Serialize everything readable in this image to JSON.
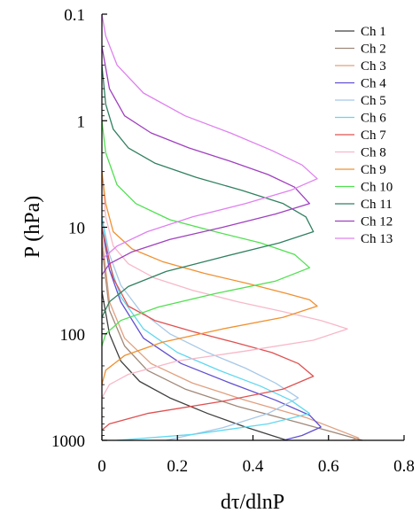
{
  "chart_data": {
    "type": "line",
    "xlabel": "dτ/dlnP",
    "ylabel": "P (hPa)",
    "xlim": [
      0,
      0.8
    ],
    "ylim": [
      0.1,
      1000
    ],
    "y_scale": "log",
    "y_inverted": true,
    "x_ticks": [
      "0",
      "0.2",
      "0.4",
      "0.6",
      "0.8"
    ],
    "y_ticks": [
      "0.1",
      "1",
      "10",
      "100",
      "1000"
    ],
    "legend_position": "top-right",
    "grid": false,
    "series": [
      {
        "name": "Ch 1",
        "color": "#404040",
        "peak_x": 0.49,
        "peak_p": 1000,
        "points": [
          [
            0,
            40
          ],
          [
            0.02,
            100
          ],
          [
            0.05,
            180
          ],
          [
            0.1,
            280
          ],
          [
            0.18,
            400
          ],
          [
            0.28,
            560
          ],
          [
            0.38,
            750
          ],
          [
            0.49,
            1000
          ]
        ]
      },
      {
        "name": "Ch 2",
        "color": "#a08878",
        "peak_x": 0.69,
        "peak_p": 1000,
        "points": [
          [
            0,
            15
          ],
          [
            0.02,
            60
          ],
          [
            0.06,
            130
          ],
          [
            0.12,
            220
          ],
          [
            0.22,
            330
          ],
          [
            0.36,
            480
          ],
          [
            0.52,
            680
          ],
          [
            0.69,
            1000
          ]
        ]
      },
      {
        "name": "Ch 3",
        "color": "#e0a080",
        "peak_x": 0.68,
        "peak_p": 950,
        "points": [
          [
            0,
            12
          ],
          [
            0.02,
            50
          ],
          [
            0.06,
            110
          ],
          [
            0.13,
            190
          ],
          [
            0.24,
            290
          ],
          [
            0.38,
            420
          ],
          [
            0.54,
            610
          ],
          [
            0.68,
            950
          ],
          [
            0.66,
            1000
          ]
        ]
      },
      {
        "name": "Ch 4",
        "color": "#6050d0",
        "peak_x": 0.58,
        "peak_p": 750,
        "points": [
          [
            0,
            10
          ],
          [
            0.02,
            25
          ],
          [
            0.05,
            50
          ],
          [
            0.11,
            110
          ],
          [
            0.21,
            190
          ],
          [
            0.34,
            290
          ],
          [
            0.46,
            420
          ],
          [
            0.55,
            580
          ],
          [
            0.58,
            750
          ],
          [
            0.53,
            900
          ],
          [
            0.48,
            1000
          ]
        ]
      },
      {
        "name": "Ch 5",
        "color": "#a8c8e8",
        "peak_x": 0.52,
        "peak_p": 400,
        "points": [
          [
            0,
            8
          ],
          [
            0.02,
            18
          ],
          [
            0.05,
            35
          ],
          [
            0.1,
            60
          ],
          [
            0.18,
            100
          ],
          [
            0.28,
            150
          ],
          [
            0.38,
            210
          ],
          [
            0.46,
            290
          ],
          [
            0.52,
            400
          ],
          [
            0.44,
            560
          ],
          [
            0.32,
            760
          ],
          [
            0.17,
            1000
          ]
        ]
      },
      {
        "name": "Ch 6",
        "color": "#60d8f0",
        "peak_x": 0.55,
        "peak_p": 560,
        "points": [
          [
            0,
            8
          ],
          [
            0.02,
            22
          ],
          [
            0.05,
            45
          ],
          [
            0.11,
            90
          ],
          [
            0.2,
            150
          ],
          [
            0.31,
            220
          ],
          [
            0.42,
            310
          ],
          [
            0.5,
            420
          ],
          [
            0.55,
            560
          ],
          [
            0.44,
            700
          ],
          [
            0.24,
            880
          ],
          [
            0.04,
            1000
          ]
        ]
      },
      {
        "name": "Ch 7",
        "color": "#e05050",
        "peak_x": 0.56,
        "peak_p": 250,
        "points": [
          [
            0,
            10
          ],
          [
            0.03,
            30
          ],
          [
            0.07,
            55
          ],
          [
            0.14,
            75
          ],
          [
            0.24,
            95
          ],
          [
            0.35,
            120
          ],
          [
            0.45,
            150
          ],
          [
            0.52,
            190
          ],
          [
            0.56,
            250
          ],
          [
            0.48,
            330
          ],
          [
            0.32,
            430
          ],
          [
            0.12,
            560
          ],
          [
            0.02,
            700
          ],
          [
            0,
            800
          ]
        ]
      },
      {
        "name": "Ch 8",
        "color": "#f8b8c8",
        "peak_x": 0.65,
        "peak_p": 90,
        "points": [
          [
            0,
            3
          ],
          [
            0.01,
            8
          ],
          [
            0.03,
            15
          ],
          [
            0.07,
            22
          ],
          [
            0.14,
            30
          ],
          [
            0.24,
            39
          ],
          [
            0.36,
            50
          ],
          [
            0.48,
            62
          ],
          [
            0.58,
            75
          ],
          [
            0.65,
            90
          ],
          [
            0.56,
            115
          ],
          [
            0.38,
            145
          ],
          [
            0.2,
            180
          ],
          [
            0.07,
            240
          ],
          [
            0.02,
            300
          ],
          [
            0,
            400
          ]
        ]
      },
      {
        "name": "Ch 9",
        "color": "#f09030",
        "peak_x": 0.57,
        "peak_p": 55,
        "points": [
          [
            0,
            3
          ],
          [
            0.01,
            6
          ],
          [
            0.03,
            11
          ],
          [
            0.08,
            16
          ],
          [
            0.16,
            21
          ],
          [
            0.27,
            27
          ],
          [
            0.39,
            34
          ],
          [
            0.49,
            42
          ],
          [
            0.55,
            48
          ],
          [
            0.57,
            55
          ],
          [
            0.48,
            70
          ],
          [
            0.32,
            90
          ],
          [
            0.16,
            120
          ],
          [
            0.06,
            160
          ],
          [
            0.01,
            220
          ],
          [
            0,
            300
          ]
        ]
      },
      {
        "name": "Ch 10",
        "color": "#50e050",
        "peak_x": 0.55,
        "peak_p": 24,
        "points": [
          [
            0,
            1
          ],
          [
            0.01,
            2
          ],
          [
            0.04,
            4
          ],
          [
            0.09,
            6
          ],
          [
            0.18,
            8.5
          ],
          [
            0.3,
            11
          ],
          [
            0.42,
            14
          ],
          [
            0.51,
            18
          ],
          [
            0.55,
            24
          ],
          [
            0.46,
            32
          ],
          [
            0.3,
            42
          ],
          [
            0.15,
            56
          ],
          [
            0.05,
            75
          ],
          [
            0.01,
            100
          ],
          [
            0,
            130
          ]
        ]
      },
      {
        "name": "Ch 11",
        "color": "#308060",
        "peak_x": 0.56,
        "peak_p": 11,
        "points": [
          [
            0,
            0.3
          ],
          [
            0.01,
            0.7
          ],
          [
            0.03,
            1.2
          ],
          [
            0.07,
            1.8
          ],
          [
            0.14,
            2.5
          ],
          [
            0.25,
            3.4
          ],
          [
            0.37,
            4.5
          ],
          [
            0.48,
            6
          ],
          [
            0.54,
            8
          ],
          [
            0.56,
            11
          ],
          [
            0.47,
            14
          ],
          [
            0.32,
            19
          ],
          [
            0.17,
            26
          ],
          [
            0.07,
            36
          ],
          [
            0.02,
            50
          ],
          [
            0,
            70
          ]
        ]
      },
      {
        "name": "Ch 12",
        "color": "#a040c0",
        "peak_x": 0.55,
        "peak_p": 6,
        "points": [
          [
            0,
            0.2
          ],
          [
            0.02,
            0.5
          ],
          [
            0.06,
            0.9
          ],
          [
            0.13,
            1.3
          ],
          [
            0.23,
            1.8
          ],
          [
            0.34,
            2.4
          ],
          [
            0.44,
            3.2
          ],
          [
            0.51,
            4.2
          ],
          [
            0.55,
            6
          ],
          [
            0.46,
            7.5
          ],
          [
            0.32,
            10
          ],
          [
            0.18,
            13
          ],
          [
            0.08,
            17
          ],
          [
            0.02,
            22
          ],
          [
            0,
            28
          ]
        ]
      },
      {
        "name": "Ch 13",
        "color": "#e080f0",
        "peak_x": 0.57,
        "peak_p": 3.5,
        "points": [
          [
            0,
            0.1
          ],
          [
            0.01,
            0.16
          ],
          [
            0.04,
            0.3
          ],
          [
            0.11,
            0.55
          ],
          [
            0.22,
            0.9
          ],
          [
            0.34,
            1.3
          ],
          [
            0.45,
            1.9
          ],
          [
            0.53,
            2.6
          ],
          [
            0.57,
            3.5
          ],
          [
            0.5,
            4.5
          ],
          [
            0.38,
            6
          ],
          [
            0.24,
            8
          ],
          [
            0.12,
            11
          ],
          [
            0.04,
            15
          ],
          [
            0,
            20
          ]
        ]
      }
    ]
  }
}
